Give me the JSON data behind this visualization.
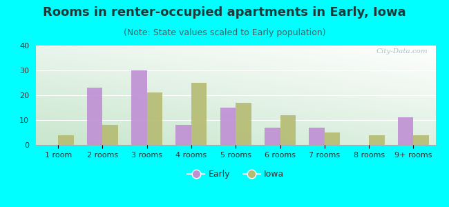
{
  "title": "Rooms in renter-occupied apartments in Early, Iowa",
  "subtitle": "(Note: State values scaled to Early population)",
  "categories": [
    "1 room",
    "2 rooms",
    "3 rooms",
    "4 rooms",
    "5 rooms",
    "6 rooms",
    "7 rooms",
    "8 rooms",
    "9+ rooms"
  ],
  "early_values": [
    0,
    23,
    30,
    8,
    15,
    7,
    7,
    0,
    11
  ],
  "iowa_values": [
    4,
    8,
    21,
    25,
    17,
    12,
    5,
    4,
    4
  ],
  "early_color": "#bf8fd4",
  "iowa_color": "#b5bb72",
  "bar_width": 0.35,
  "ylim": [
    0,
    40
  ],
  "yticks": [
    0,
    10,
    20,
    30,
    40
  ],
  "background_color": "#00ffff",
  "title_color": "#1a3a3a",
  "subtitle_color": "#336666",
  "title_fontsize": 13,
  "subtitle_fontsize": 9,
  "tick_fontsize": 8,
  "legend_fontsize": 9,
  "watermark_text": "City-Data.com",
  "watermark_color": "#a0b8b8"
}
